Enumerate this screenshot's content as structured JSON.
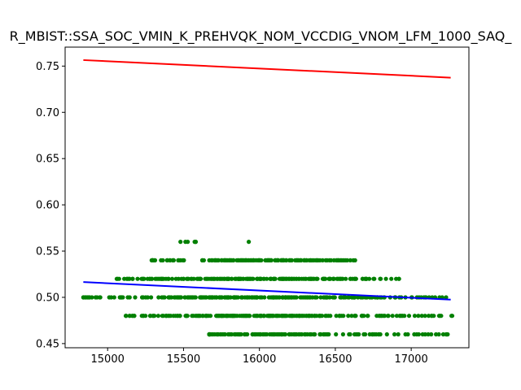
{
  "chart_data": {
    "type": "scatter",
    "title": "R_MBIST::SSA_SOC_VMIN_K_PREHVQK_NOM_VCCDIG_VNOM_LFM_1000_SAQ_",
    "xlabel": "",
    "ylabel": "",
    "xlim": [
      14720,
      17380
    ],
    "ylim": [
      0.4455,
      0.7705
    ],
    "x_ticks": [
      15000,
      15500,
      16000,
      16500,
      17000
    ],
    "x_tick_labels": [
      "15000",
      "15500",
      "16000",
      "16500",
      "17000"
    ],
    "y_ticks": [
      0.45,
      0.5,
      0.55,
      0.6,
      0.65,
      0.7,
      0.75
    ],
    "y_tick_labels": [
      "0.45",
      "0.50",
      "0.55",
      "0.60",
      "0.65",
      "0.70",
      "0.75"
    ],
    "grid": false,
    "colors": {
      "points": "#008000",
      "upper_line": "#ff0000",
      "fit_line": "#0000ff"
    },
    "scatter_levels": [
      {
        "y": 0.46,
        "x_range": [
          15670,
          17240
        ]
      },
      {
        "y": 0.48,
        "x_range": [
          15120,
          17270
        ]
      },
      {
        "y": 0.5,
        "x_range": [
          14840,
          17230
        ]
      },
      {
        "y": 0.52,
        "x_range": [
          15060,
          16920
        ]
      },
      {
        "y": 0.54,
        "x_range": [
          15290,
          16630
        ]
      },
      {
        "y": 0.56,
        "x_range": [
          15480,
          15580
        ]
      }
    ],
    "extra_points": [
      {
        "x": 15930,
        "y": 0.56
      },
      {
        "x": 14840,
        "y": 0.5
      },
      {
        "x": 17230,
        "y": 0.46
      }
    ],
    "lines": [
      {
        "x": [
          14840,
          17260
        ],
        "y": [
          0.7565,
          0.7375
        ]
      },
      {
        "x": [
          14840,
          17260
        ],
        "y": [
          0.5165,
          0.4975
        ]
      }
    ]
  }
}
